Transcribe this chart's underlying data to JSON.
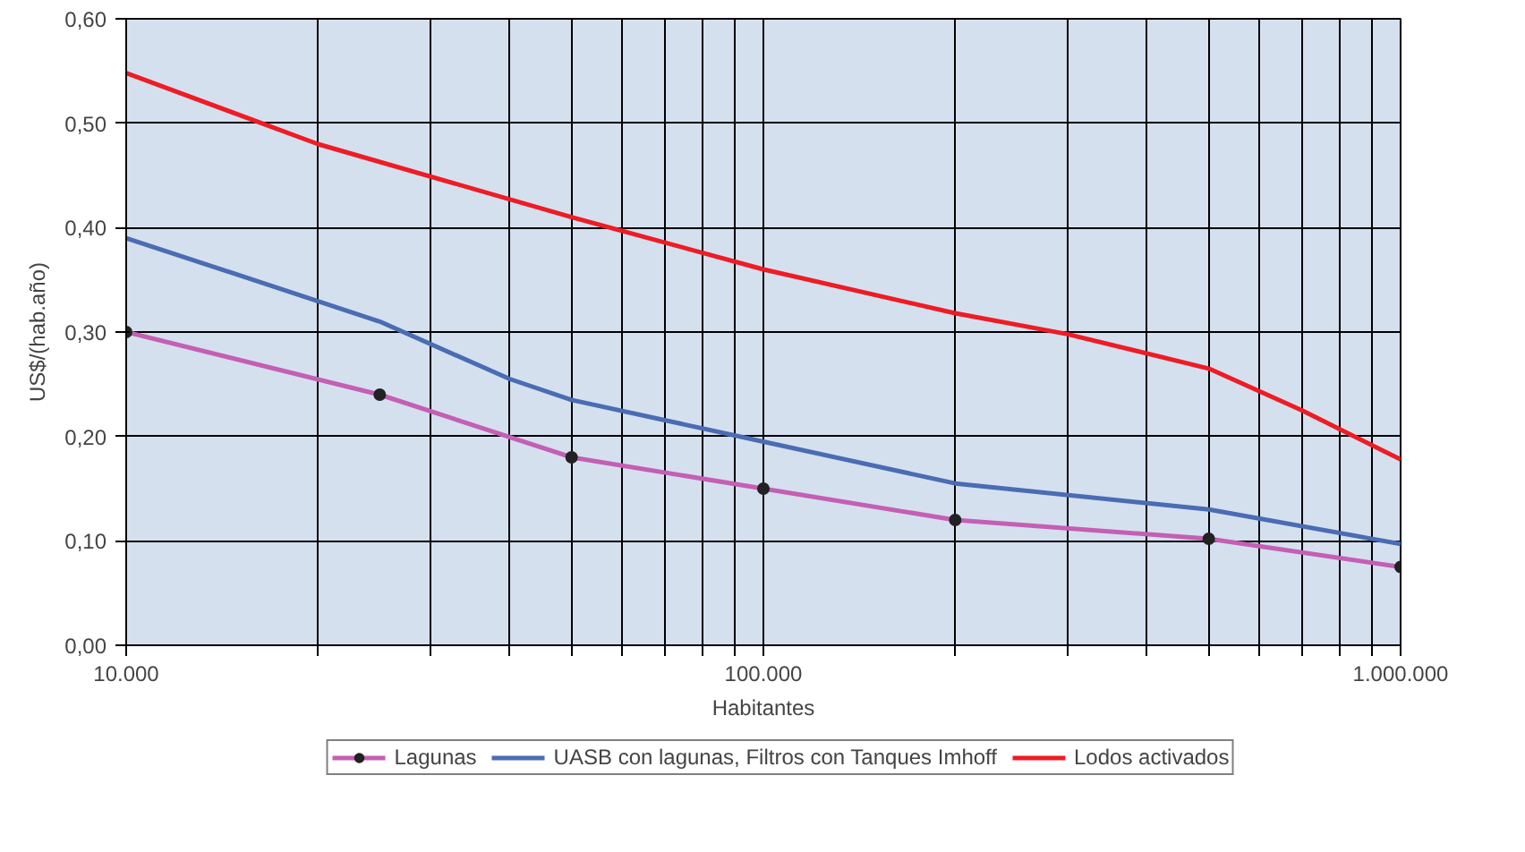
{
  "chart_data": {
    "type": "line",
    "xlabel": "Habitantes",
    "ylabel": "US$/(hab.año)",
    "log": "x",
    "xlim": [
      10000,
      1000000
    ],
    "ylim": [
      0,
      0.6
    ],
    "xticks": [
      {
        "value": 10000,
        "label": "10.000"
      },
      {
        "value": 20000,
        "label": null
      },
      {
        "value": 30000,
        "label": null
      },
      {
        "value": 40000,
        "label": null
      },
      {
        "value": 50000,
        "label": null
      },
      {
        "value": 60000,
        "label": null
      },
      {
        "value": 70000,
        "label": null
      },
      {
        "value": 80000,
        "label": null
      },
      {
        "value": 90000,
        "label": null
      },
      {
        "value": 100000,
        "label": "100.000"
      },
      {
        "value": 200000,
        "label": null
      },
      {
        "value": 300000,
        "label": null
      },
      {
        "value": 400000,
        "label": null
      },
      {
        "value": 500000,
        "label": null
      },
      {
        "value": 600000,
        "label": null
      },
      {
        "value": 700000,
        "label": null
      },
      {
        "value": 800000,
        "label": null
      },
      {
        "value": 900000,
        "label": null
      },
      {
        "value": 1000000,
        "label": "1.000.000"
      }
    ],
    "yticks": [
      {
        "value": 0,
        "label": "0,00"
      },
      {
        "value": 0.1,
        "label": "0,10"
      },
      {
        "value": 0.2,
        "label": "0,20"
      },
      {
        "value": 0.3,
        "label": "0,30"
      },
      {
        "value": 0.4,
        "label": "0,40"
      },
      {
        "value": 0.5,
        "label": "0,50"
      },
      {
        "value": 0.6,
        "label": "0,60"
      }
    ],
    "grid": true,
    "legend": "bottom",
    "series": [
      {
        "name": "Lagunas",
        "color": "#c45fb4",
        "marker": "circle",
        "x": [
          10000,
          25000,
          50000,
          100000,
          200000,
          500000,
          1000000
        ],
        "values": [
          0.3,
          0.24,
          0.18,
          0.15,
          0.12,
          0.102,
          0.075
        ]
      },
      {
        "name": "UASB con lagunas, Filtros con Tanques Imhoff",
        "color": "#4a6cb3",
        "marker": "none",
        "x": [
          10000,
          25000,
          40000,
          50000,
          100000,
          200000,
          500000,
          1000000
        ],
        "values": [
          0.39,
          0.31,
          0.255,
          0.235,
          0.195,
          0.155,
          0.13,
          0.097
        ]
      },
      {
        "name": "Lodos activados",
        "color": "#ee1c24",
        "marker": "none",
        "x": [
          10000,
          20000,
          50000,
          100000,
          200000,
          300000,
          500000,
          700000,
          1000000
        ],
        "values": [
          0.548,
          0.48,
          0.41,
          0.36,
          0.318,
          0.298,
          0.265,
          0.225,
          0.178
        ]
      }
    ]
  }
}
